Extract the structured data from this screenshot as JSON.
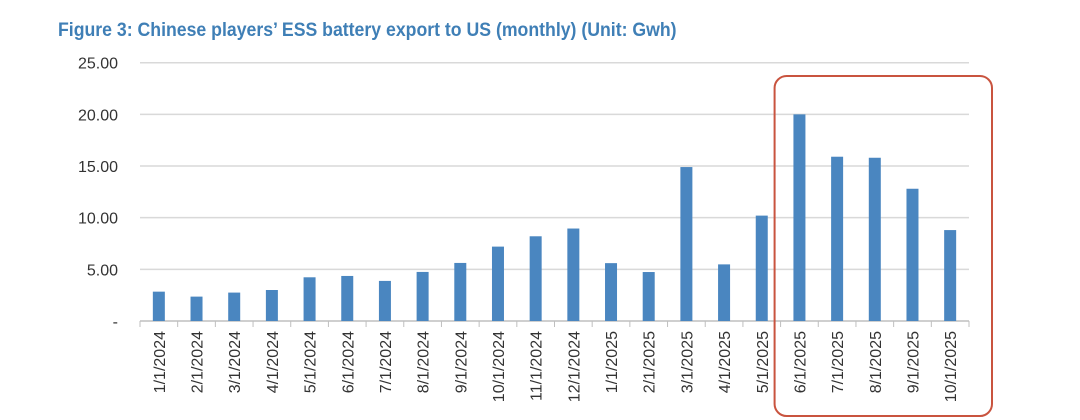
{
  "chart_data": {
    "type": "bar",
    "title": "Figure 3: Chinese players’ ESS battery export to US (monthly) (Unit: Gwh)",
    "xlabel": "",
    "ylabel": "",
    "categories": [
      "1/1/2024",
      "2/1/2024",
      "3/1/2024",
      "4/1/2024",
      "5/1/2024",
      "6/1/2024",
      "7/1/2024",
      "8/1/2024",
      "9/1/2024",
      "10/1/2024",
      "11/1/2024",
      "12/1/2024",
      "1/1/2025",
      "2/1/2025",
      "3/1/2025",
      "4/1/2025",
      "5/1/2025",
      "6/1/2025",
      "7/1/2025",
      "8/1/2025",
      "9/1/2025",
      "10/1/2025"
    ],
    "values": [
      2.84,
      2.36,
      2.75,
      3.0,
      4.23,
      4.36,
      3.88,
      4.75,
      5.62,
      7.2,
      8.2,
      8.95,
      5.6,
      4.74,
      14.9,
      5.48,
      10.2,
      20.0,
      15.9,
      15.8,
      12.8,
      8.8
    ],
    "ylim": [
      0,
      25
    ],
    "yticks": [
      0,
      5,
      10,
      15,
      20,
      25
    ],
    "ytick_labels": [
      "-",
      "5.00",
      "10.00",
      "15.00",
      "20.00",
      "25.00"
    ],
    "grid": true,
    "bar_color": "#4a86c0",
    "highlight": {
      "from": "6/1/2025",
      "to": "10/1/2025",
      "color": "#c9543f"
    }
  }
}
